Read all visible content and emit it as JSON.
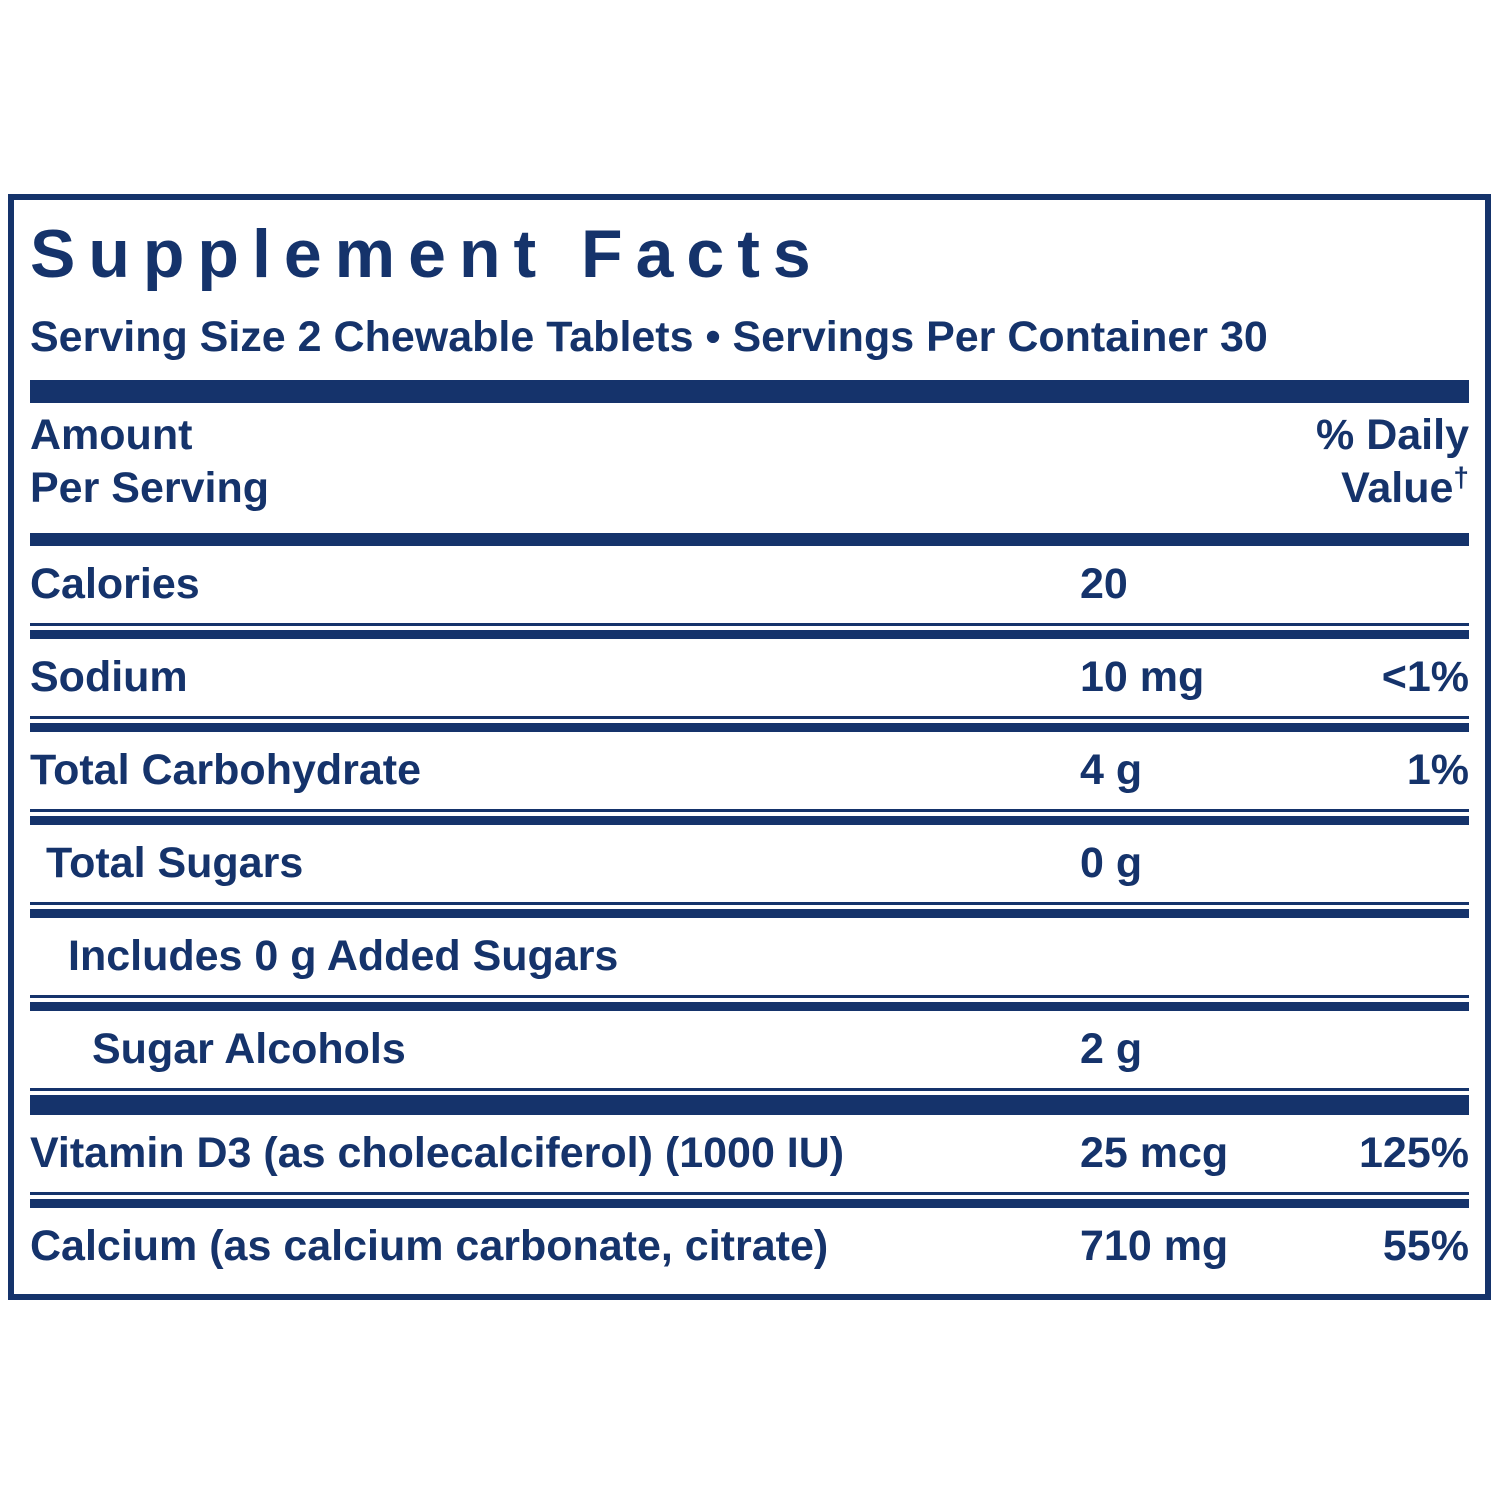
{
  "colors": {
    "navy": "#15336b",
    "background": "#ffffff"
  },
  "title": "Supplement Facts",
  "serving_info": "Serving Size 2 Chewable Tablets • Servings Per Container 30",
  "header": {
    "amount_line1": "Amount",
    "amount_line2": "Per Serving",
    "dv_line1": "% Daily",
    "dv_line2": "Value",
    "dv_dagger": "†"
  },
  "rows": [
    {
      "name": "Calories",
      "amount": "20",
      "dv": ""
    },
    {
      "name": "Sodium",
      "amount": "10 mg",
      "dv": "<1%"
    },
    {
      "name": "Total Carbohydrate",
      "amount": "4 g",
      "dv": "1%"
    },
    {
      "name": "Total Sugars",
      "amount": "0 g",
      "dv": ""
    },
    {
      "name": "Includes 0 g Added Sugars",
      "amount": "",
      "dv": ""
    },
    {
      "name": "Sugar Alcohols",
      "amount": "2 g",
      "dv": ""
    },
    {
      "name": "Vitamin D3 (as cholecalciferol) (1000 IU)",
      "amount": "25 mcg",
      "dv": "125%"
    },
    {
      "name": "Calcium (as calcium carbonate, citrate)",
      "amount": "710 mg",
      "dv": "55%"
    }
  ]
}
